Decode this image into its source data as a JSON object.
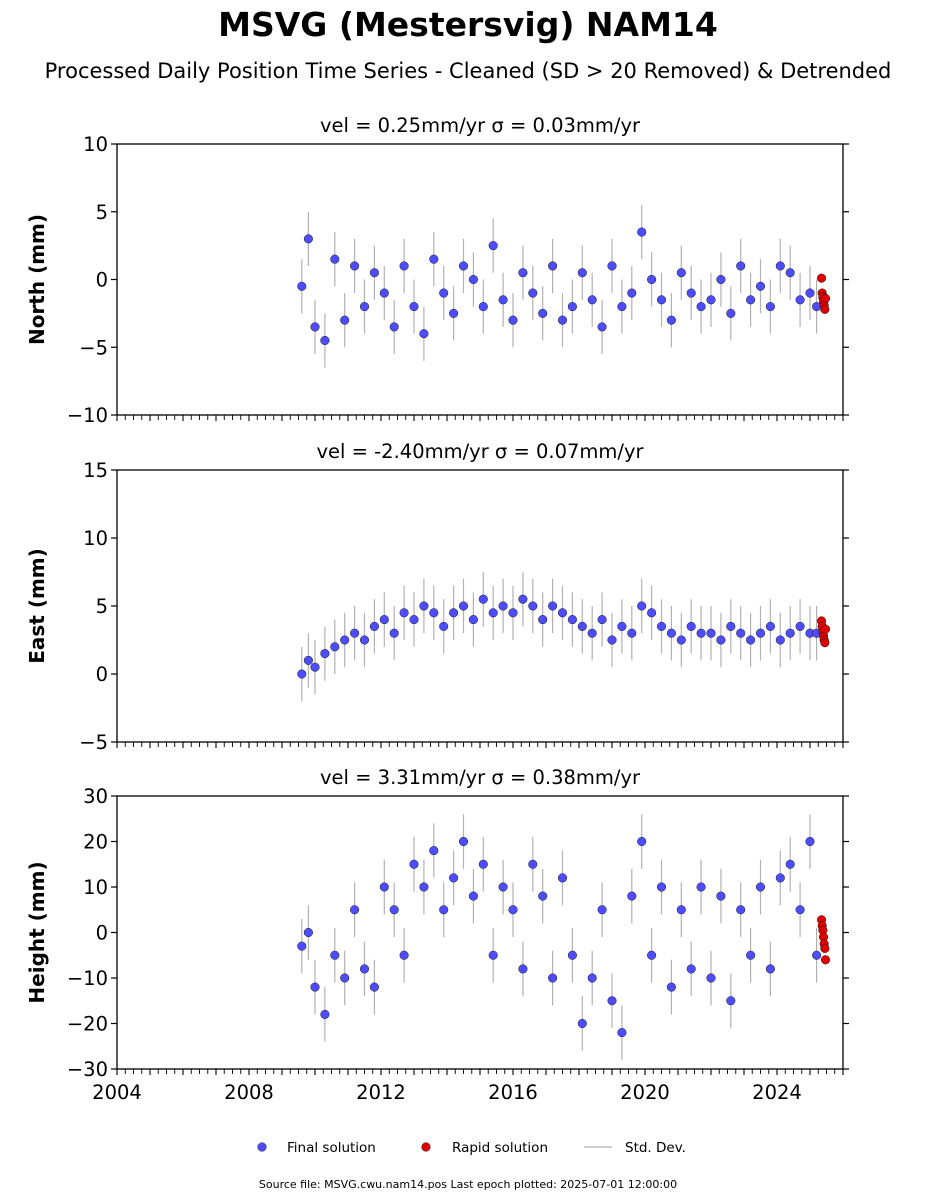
{
  "title": "MSVG (Mestersvig) NAM14",
  "subtitle": "Processed Daily Position Time Series - Cleaned (SD > 20 Removed) & Detrended",
  "source_note": "Source file: MSVG.cwu.nam14.pos  Last epoch plotted: 2025-07-01 12:00:00",
  "legend": {
    "items": [
      {
        "label": "Final solution",
        "color": "#4d4dff",
        "kind": "marker"
      },
      {
        "label": "Rapid solution",
        "color": "#e00000",
        "kind": "marker"
      },
      {
        "label": "Std. Dev.",
        "color": "#cccccc",
        "kind": "line"
      }
    ]
  },
  "colors": {
    "final": "#4d4dff",
    "rapid": "#e00000",
    "stddev": "#808080",
    "edge": "#1a1a1a"
  },
  "chart_data": [
    {
      "type": "scatter",
      "component": "North",
      "title": "vel = 0.25mm/yr   σ = 0.03mm/yr",
      "ylabel": "North (mm)",
      "xlim": [
        2004.0,
        2026.0
      ],
      "ylim": [
        -10,
        10
      ],
      "yticks": [
        -10,
        -5,
        0,
        5,
        10
      ],
      "yticklabels": [
        "−10",
        "−5",
        "0",
        "5",
        "10"
      ],
      "series": [
        {
          "name": "Final solution",
          "x": [
            2009.6,
            2009.8,
            2010.0,
            2010.3,
            2010.6,
            2010.9,
            2011.2,
            2011.5,
            2011.8,
            2012.1,
            2012.4,
            2012.7,
            2013.0,
            2013.3,
            2013.6,
            2013.9,
            2014.2,
            2014.5,
            2014.8,
            2015.1,
            2015.4,
            2015.7,
            2016.0,
            2016.3,
            2016.6,
            2016.9,
            2017.2,
            2017.5,
            2017.8,
            2018.1,
            2018.4,
            2018.7,
            2019.0,
            2019.3,
            2019.6,
            2019.9,
            2020.2,
            2020.5,
            2020.8,
            2021.1,
            2021.4,
            2021.7,
            2022.0,
            2022.3,
            2022.6,
            2022.9,
            2023.2,
            2023.5,
            2023.8,
            2024.1,
            2024.4,
            2024.7,
            2025.0,
            2025.2
          ],
          "y": [
            -0.5,
            3.0,
            -3.5,
            -4.5,
            1.5,
            -3.0,
            1.0,
            -2.0,
            0.5,
            -1.0,
            -3.5,
            1.0,
            -2.0,
            -4.0,
            1.5,
            -1.0,
            -2.5,
            1.0,
            0.0,
            -2.0,
            2.5,
            -1.5,
            -3.0,
            0.5,
            -1.0,
            -2.5,
            1.0,
            -3.0,
            -2.0,
            0.5,
            -1.5,
            -3.5,
            1.0,
            -2.0,
            -1.0,
            3.5,
            0.0,
            -1.5,
            -3.0,
            0.5,
            -1.0,
            -2.0,
            -1.5,
            0.0,
            -2.5,
            1.0,
            -1.5,
            -0.5,
            -2.0,
            1.0,
            0.5,
            -1.5,
            -1.0,
            -2.0
          ]
        },
        {
          "name": "Rapid solution",
          "x": [
            2025.35,
            2025.37,
            2025.39,
            2025.41,
            2025.43,
            2025.45,
            2025.47
          ],
          "y": [
            0.1,
            -1.0,
            -1.3,
            -1.6,
            -1.9,
            -2.2,
            -1.4
          ]
        }
      ]
    },
    {
      "type": "scatter",
      "component": "East",
      "title": "vel = -2.40mm/yr   σ = 0.07mm/yr",
      "ylabel": "East (mm)",
      "xlim": [
        2004.0,
        2026.0
      ],
      "ylim": [
        -5,
        15
      ],
      "yticks": [
        -5,
        0,
        5,
        10,
        15
      ],
      "yticklabels": [
        "−5",
        "0",
        "5",
        "10",
        "15"
      ],
      "series": [
        {
          "name": "Final solution",
          "x": [
            2009.6,
            2009.8,
            2010.0,
            2010.3,
            2010.6,
            2010.9,
            2011.2,
            2011.5,
            2011.8,
            2012.1,
            2012.4,
            2012.7,
            2013.0,
            2013.3,
            2013.6,
            2013.9,
            2014.2,
            2014.5,
            2014.8,
            2015.1,
            2015.4,
            2015.7,
            2016.0,
            2016.3,
            2016.6,
            2016.9,
            2017.2,
            2017.5,
            2017.8,
            2018.1,
            2018.4,
            2018.7,
            2019.0,
            2019.3,
            2019.6,
            2019.9,
            2020.2,
            2020.5,
            2020.8,
            2021.1,
            2021.4,
            2021.7,
            2022.0,
            2022.3,
            2022.6,
            2022.9,
            2023.2,
            2023.5,
            2023.8,
            2024.1,
            2024.4,
            2024.7,
            2025.0,
            2025.2
          ],
          "y": [
            0.0,
            1.0,
            0.5,
            1.5,
            2.0,
            2.5,
            3.0,
            2.5,
            3.5,
            4.0,
            3.0,
            4.5,
            4.0,
            5.0,
            4.5,
            3.5,
            4.5,
            5.0,
            4.0,
            5.5,
            4.5,
            5.0,
            4.5,
            5.5,
            5.0,
            4.0,
            5.0,
            4.5,
            4.0,
            3.5,
            3.0,
            4.0,
            2.5,
            3.5,
            3.0,
            5.0,
            4.5,
            3.5,
            3.0,
            2.5,
            3.5,
            3.0,
            3.0,
            2.5,
            3.5,
            3.0,
            2.5,
            3.0,
            3.5,
            2.5,
            3.0,
            3.5,
            3.0,
            3.0
          ]
        },
        {
          "name": "Rapid solution",
          "x": [
            2025.35,
            2025.37,
            2025.39,
            2025.41,
            2025.43,
            2025.45,
            2025.47
          ],
          "y": [
            3.9,
            3.5,
            3.1,
            2.8,
            2.5,
            2.3,
            3.3
          ]
        }
      ]
    },
    {
      "type": "scatter",
      "component": "Height",
      "title": "vel = 3.31mm/yr   σ = 0.38mm/yr",
      "ylabel": "Height (mm)",
      "xlim": [
        2004.0,
        2026.0
      ],
      "ylim": [
        -30,
        30
      ],
      "yticks": [
        -30,
        -20,
        -10,
        0,
        10,
        20,
        30
      ],
      "yticklabels": [
        "−30",
        "−20",
        "−10",
        "0",
        "10",
        "20",
        "30"
      ],
      "xticks": [
        2004,
        2008,
        2012,
        2016,
        2020,
        2024
      ],
      "xticklabels": [
        "2004",
        "2008",
        "2012",
        "2016",
        "2020",
        "2024"
      ],
      "series": [
        {
          "name": "Final solution",
          "x": [
            2009.6,
            2009.8,
            2010.0,
            2010.3,
            2010.6,
            2010.9,
            2011.2,
            2011.5,
            2011.8,
            2012.1,
            2012.4,
            2012.7,
            2013.0,
            2013.3,
            2013.6,
            2013.9,
            2014.2,
            2014.5,
            2014.8,
            2015.1,
            2015.4,
            2015.7,
            2016.0,
            2016.3,
            2016.6,
            2016.9,
            2017.2,
            2017.5,
            2017.8,
            2018.1,
            2018.4,
            2018.7,
            2019.0,
            2019.3,
            2019.6,
            2019.9,
            2020.2,
            2020.5,
            2020.8,
            2021.1,
            2021.4,
            2021.7,
            2022.0,
            2022.3,
            2022.6,
            2022.9,
            2023.2,
            2023.5,
            2023.8,
            2024.1,
            2024.4,
            2024.7,
            2025.0,
            2025.2
          ],
          "y": [
            -3.0,
            0.0,
            -12.0,
            -18.0,
            -5.0,
            -10.0,
            5.0,
            -8.0,
            -12.0,
            10.0,
            5.0,
            -5.0,
            15.0,
            10.0,
            18.0,
            5.0,
            12.0,
            20.0,
            8.0,
            15.0,
            -5.0,
            10.0,
            5.0,
            -8.0,
            15.0,
            8.0,
            -10.0,
            12.0,
            -5.0,
            -20.0,
            -10.0,
            5.0,
            -15.0,
            -22.0,
            8.0,
            20.0,
            -5.0,
            10.0,
            -12.0,
            5.0,
            -8.0,
            10.0,
            -10.0,
            8.0,
            -15.0,
            5.0,
            -5.0,
            10.0,
            -8.0,
            12.0,
            15.0,
            5.0,
            20.0,
            -5.0
          ]
        },
        {
          "name": "Rapid solution",
          "x": [
            2025.35,
            2025.37,
            2025.39,
            2025.41,
            2025.43,
            2025.45,
            2025.47
          ],
          "y": [
            2.8,
            1.5,
            0.5,
            -1.0,
            -2.5,
            -3.5,
            -6.0
          ]
        }
      ]
    }
  ]
}
